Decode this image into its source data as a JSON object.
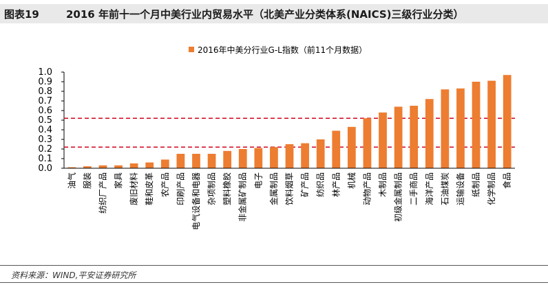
{
  "figure": {
    "label": "图表19",
    "title": "2016 年前十一个月中美行业内贸易水平（北美产业分类体系(NAICS)三级行业分类）",
    "source": "资料来源：WIND,平安证券研究所"
  },
  "colors": {
    "bar": "#ED7D31",
    "ref_line": "#D0021B"
  },
  "chart_data": {
    "type": "bar",
    "legend": "2016年中美分行业G-L指数（前11个月数据）",
    "ylim": [
      0,
      1.0
    ],
    "yticks": [
      "0.0",
      "0.1",
      "0.2",
      "0.3",
      "0.4",
      "0.5",
      "0.6",
      "0.7",
      "0.8",
      "0.9",
      "1.0"
    ],
    "reference_lines": [
      0.22,
      0.52
    ],
    "categories": [
      "油气",
      "服装",
      "纺织厂产品",
      "家具",
      "废旧材料",
      "鞋和皮革",
      "农产品",
      "印刷产品",
      "电气设备和电器",
      "杂项制品",
      "塑料橡胶",
      "非金属矿制品",
      "电子",
      "金属制品",
      "饮料烟草",
      "矿产品",
      "纺织品",
      "林产品",
      "机械",
      "动物产品",
      "木制品",
      "初级金属制品",
      "二手商品",
      "海洋产品",
      "石油煤炭",
      "运输设备",
      "纸制品",
      "化学制品",
      "食品"
    ],
    "values": [
      0.01,
      0.02,
      0.03,
      0.03,
      0.05,
      0.06,
      0.09,
      0.15,
      0.15,
      0.15,
      0.18,
      0.2,
      0.21,
      0.22,
      0.25,
      0.26,
      0.3,
      0.39,
      0.43,
      0.52,
      0.58,
      0.64,
      0.65,
      0.72,
      0.82,
      0.83,
      0.9,
      0.91,
      0.97
    ]
  }
}
